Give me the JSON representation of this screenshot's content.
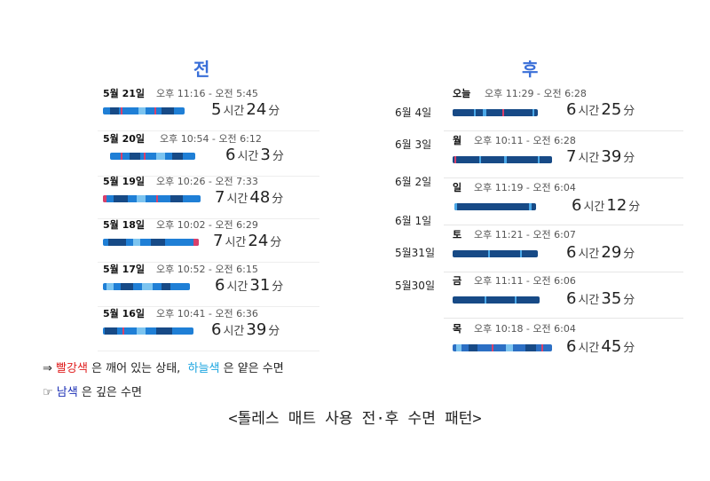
{
  "titles": {
    "before": "전",
    "after": "후"
  },
  "before_entries": [
    {
      "day": "5월 21일",
      "range": "오후 11:16 - 오전 5:45",
      "h": "5",
      "m": "24"
    },
    {
      "day": "5월 20일",
      "range": "오후 10:54 - 오전 6:12",
      "h": "6",
      "m": "3"
    },
    {
      "day": "5월 19일",
      "range": "오후 10:26 - 오전 7:33",
      "h": "7",
      "m": "48"
    },
    {
      "day": "5월 18일",
      "range": "오후 10:02 - 오전 6:29",
      "h": "7",
      "m": "24"
    },
    {
      "day": "5월 17일",
      "range": "오후 10:52 - 오전 6:15",
      "h": "6",
      "m": "31"
    },
    {
      "day": "5월 16일",
      "range": "오후 10:41 - 오전 6:36",
      "h": "6",
      "m": "39"
    }
  ],
  "after_entries": [
    {
      "day": "오늘",
      "range": "오후 11:29 - 오전 6:28",
      "h": "6",
      "m": "25"
    },
    {
      "day": "월",
      "range": "오후 10:11 - 오전 6:28",
      "h": "7",
      "m": "39"
    },
    {
      "day": "일",
      "range": "오후 11:19 - 오전 6:04",
      "h": "6",
      "m": "12"
    },
    {
      "day": "토",
      "range": "오후 11:21 - 오전 6:07",
      "h": "6",
      "m": "29"
    },
    {
      "day": "금",
      "range": "오후 11:11 - 오전 6:06",
      "h": "6",
      "m": "35"
    },
    {
      "day": "목",
      "range": "오후 10:18 - 오전 6:04",
      "h": "6",
      "m": "45"
    }
  ],
  "units": {
    "hour": "시간",
    "minute": "分"
  },
  "date_labels": [
    "6월 4일",
    "6월 3일",
    "6월 2일",
    "6월 1일",
    "5월31일",
    "5월30일"
  ],
  "legend": {
    "line1_prefix": "⇒",
    "line1_red": "빨강색",
    "line1_mid": " 은 깨어 있는 상태,",
    "line1_sky": "하늘색",
    "line1_end": " 은 얕은 수면",
    "line2_prefix": "☞",
    "line2_navy": "남색",
    "line2_end": " 은 깊은 수면"
  },
  "caption": "<톨레스 매트 사용 전·후 수면 패턴>",
  "colors": {
    "title": "#3a6fd8",
    "awake": "#e02020",
    "light": "#1ea6e0",
    "deep": "#1b2fb5"
  }
}
